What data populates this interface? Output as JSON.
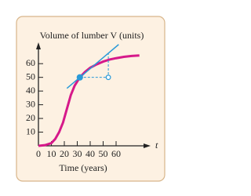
{
  "chart_data": {
    "type": "line",
    "title": "Volume of lumber V (units)",
    "x_label": "Time (years)",
    "x_axis_variable": "t",
    "xlim": [
      0,
      80
    ],
    "ylim": [
      0,
      75
    ],
    "xticks": [
      0,
      10,
      20,
      30,
      40,
      50,
      60
    ],
    "yticks": [
      10,
      20,
      30,
      40,
      50,
      60
    ],
    "grid": false,
    "series": [
      {
        "color": "#d6198a",
        "x": [
          0,
          5,
          10,
          13,
          16,
          19,
          22,
          25,
          28,
          32,
          36,
          40,
          45,
          50,
          55,
          60,
          66,
          72,
          78
        ],
        "values": [
          0,
          0.5,
          2,
          5,
          10,
          17,
          27,
          37,
          44,
          50,
          54,
          57,
          59.5,
          61.5,
          63,
          64,
          65,
          65.6,
          66
        ]
      },
      {
        "color": "#2a9ad8",
        "x": [
          22,
          62
        ],
        "values": [
          42,
          74
        ]
      },
      {
        "color": "#2a9ad8",
        "dashed": true,
        "x": [
          32,
          54,
          54
        ],
        "values": [
          50,
          50,
          67.6
        ]
      }
    ],
    "points": [
      {
        "x": 32,
        "value": 50,
        "filled": true
      },
      {
        "x": 54,
        "value": 50,
        "filled": false
      }
    ]
  }
}
